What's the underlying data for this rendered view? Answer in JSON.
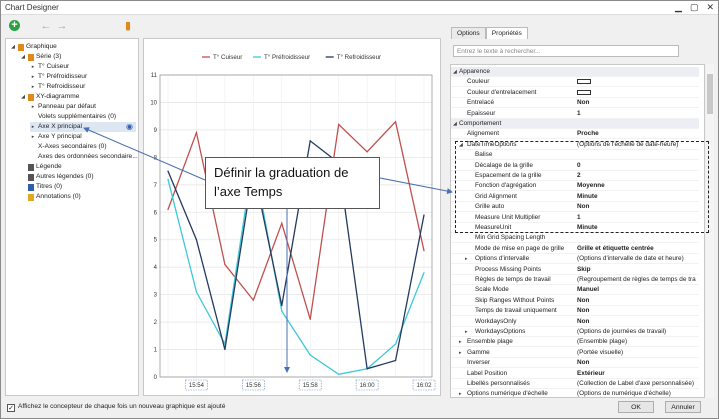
{
  "window": {
    "title": "Chart Designer",
    "min_glyph": "▁",
    "max_glyph": "▢",
    "close_glyph": "✕"
  },
  "toolbar": {
    "add_glyph": "+",
    "undo_glyph": "←",
    "redo_glyph": "→",
    "wizard_glyph": "▮"
  },
  "tree": {
    "items": [
      {
        "label": "Graphique",
        "icon": "chart-icon",
        "level": 0,
        "tri": "◢"
      },
      {
        "label": "Série (3)",
        "icon": "series-icon",
        "level": 1,
        "tri": "◢"
      },
      {
        "label": "T° Cuiseur",
        "icon": "",
        "level": 2,
        "tri": "▸"
      },
      {
        "label": "T° Préfroidisseur",
        "icon": "",
        "level": 2,
        "tri": "▸"
      },
      {
        "label": "T° Refroidisseur",
        "icon": "",
        "level": 2,
        "tri": "▸"
      },
      {
        "label": "XY-diagramme",
        "icon": "diagram-icon",
        "level": 1,
        "tri": "◢"
      },
      {
        "label": "Panneau par défaut",
        "icon": "",
        "level": 2,
        "tri": "▸"
      },
      {
        "label": "Volets supplémentaires (0)",
        "icon": "",
        "level": 2,
        "tri": ""
      },
      {
        "label": "Axe X principal",
        "icon": "",
        "level": 2,
        "tri": "▸",
        "selected": true
      },
      {
        "label": "Axe Y principal",
        "icon": "",
        "level": 2,
        "tri": "▸"
      },
      {
        "label": "X-Axes secondaires (0)",
        "icon": "",
        "level": 2,
        "tri": ""
      },
      {
        "label": "Axes des ordonnées secondaire...",
        "icon": "",
        "level": 2,
        "tri": ""
      },
      {
        "label": "Légende",
        "icon": "legend-icon",
        "level": 1,
        "tri": ""
      },
      {
        "label": "Autres légendes (0)",
        "icon": "legend-icon",
        "level": 1,
        "tri": ""
      },
      {
        "label": "Titres (0)",
        "icon": "titles-icon",
        "level": 1,
        "tri": ""
      },
      {
        "label": "Annotations (0)",
        "icon": "annotation-icon",
        "level": 1,
        "tri": ""
      }
    ],
    "eye_glyph": "◉"
  },
  "chart_data": {
    "type": "line",
    "x": [
      "15:53",
      "15:54",
      "15:55",
      "15:56",
      "15:57",
      "15:58",
      "15:59",
      "16:00",
      "16:01",
      "16:02"
    ],
    "xticks": [
      "15:54",
      "15:56",
      "15:58",
      "16:00",
      "16:02"
    ],
    "ylim": [
      0,
      11
    ],
    "yticks": [
      0,
      1,
      2,
      3,
      4,
      5,
      6,
      7,
      8,
      9,
      10,
      11
    ],
    "grid": true,
    "legend_placement": "top",
    "series": [
      {
        "name": "T° Cuiseur",
        "color": "#c0504d",
        "values": [
          6.1,
          8.9,
          4.1,
          2.8,
          5.6,
          2.1,
          9.2,
          8.2,
          9.3,
          4.6
        ]
      },
      {
        "name": "T° Préfroidisseur",
        "color": "#3cc8d8",
        "values": [
          7.2,
          3.1,
          1.2,
          8.0,
          2.4,
          0.8,
          0.1,
          0.3,
          1.2,
          3.8
        ]
      },
      {
        "name": "T° Refroidisseur",
        "color": "#243a5e",
        "values": [
          7.5,
          5.0,
          1.0,
          7.6,
          2.6,
          8.6,
          7.8,
          0.3,
          0.6,
          5.9
        ]
      }
    ]
  },
  "tabs": {
    "options": "Options",
    "properties": "Propriétés"
  },
  "search": {
    "placeholder": "Entrez le texte à rechercher..."
  },
  "props": [
    {
      "cat": true,
      "name": "Apparence",
      "x": "◢"
    },
    {
      "name": "Couleur",
      "swatch": true,
      "value": ""
    },
    {
      "name": "Couleur d'entrelacement",
      "swatch": true,
      "value": ""
    },
    {
      "name": "Entrelacé",
      "value": "Non",
      "bold": true
    },
    {
      "name": "Epaisseur",
      "value": "1",
      "bold": true
    },
    {
      "cat": true,
      "name": "Comportement",
      "x": "◢"
    },
    {
      "name": "Alignement",
      "value": "Proche",
      "bold": true
    },
    {
      "name": "DateTimeOptions",
      "value": "(Options de l'échelle de date-heure)",
      "x": "◢"
    },
    {
      "name": "Balise",
      "value": "",
      "indent": true
    },
    {
      "name": "Décalage de la grille",
      "value": "0",
      "bold": true,
      "indent": true
    },
    {
      "name": "Espacement de la grille",
      "value": "2",
      "bold": true,
      "indent": true
    },
    {
      "name": "Fonction d'agrégation",
      "value": "Moyenne",
      "bold": true,
      "indent": true
    },
    {
      "name": "Grid Alignment",
      "value": "Minute",
      "bold": true,
      "indent": true
    },
    {
      "name": "Grille auto",
      "value": "Non",
      "bold": true,
      "indent": true
    },
    {
      "name": "Measure Unit Multiplier",
      "value": "1",
      "bold": true,
      "indent": true
    },
    {
      "name": "MeasureUnit",
      "value": "Minute",
      "bold": true,
      "indent": true
    },
    {
      "name": "Min Grid Spacing Length",
      "value": "",
      "indent": true
    },
    {
      "name": "Mode de mise en page de grille",
      "value": "Grille et étiquette centrée",
      "bold": true,
      "indent": true
    },
    {
      "name": "Options d'intervalle",
      "value": "(Options d'intervalle de date et heure)",
      "x": "▸",
      "indent": true
    },
    {
      "name": "Process Missing Points",
      "value": "Skip",
      "bold": true,
      "indent": true
    },
    {
      "name": "Règles de temps de travail",
      "value": "(Regroupement de règles de temps de tra",
      "indent": true
    },
    {
      "name": "Scale Mode",
      "value": "Manuel",
      "bold": true,
      "indent": true
    },
    {
      "name": "Skip Ranges Without Points",
      "value": "Non",
      "bold": true,
      "indent": true
    },
    {
      "name": "Temps de travail uniquement",
      "value": "Non",
      "bold": true,
      "indent": true
    },
    {
      "name": "WorkdaysOnly",
      "value": "Non",
      "bold": true,
      "indent": true
    },
    {
      "name": "WorkdaysOptions",
      "value": "(Options de journées de travail)",
      "x": "▸",
      "indent": true
    },
    {
      "name": "Ensemble plage",
      "value": "(Ensemble plage)",
      "x": "▸"
    },
    {
      "name": "Gamme",
      "value": "(Portée visuelle)",
      "x": "▸"
    },
    {
      "name": "Inverser",
      "value": "Non",
      "bold": true
    },
    {
      "name": "Label Position",
      "value": "Extérieur",
      "bold": true
    },
    {
      "name": "Libellés personnalisés",
      "value": "(Collection de Label d'axe personnalisée)"
    },
    {
      "name": "Options numérique d'échelle",
      "value": "(Options de numérique d'échelle)",
      "x": "▸"
    }
  ],
  "callout": {
    "text": "Définir la graduation de l’axe Temps"
  },
  "footer": {
    "checkbox_label": "Affichez le concepteur de chaque fois un nouveau graphique est ajouté",
    "check_glyph": "✓",
    "ok": "OK",
    "cancel": "Annuler"
  },
  "colors": {
    "accent": "#2e5fa8",
    "arrow": "#4a6fb0"
  }
}
